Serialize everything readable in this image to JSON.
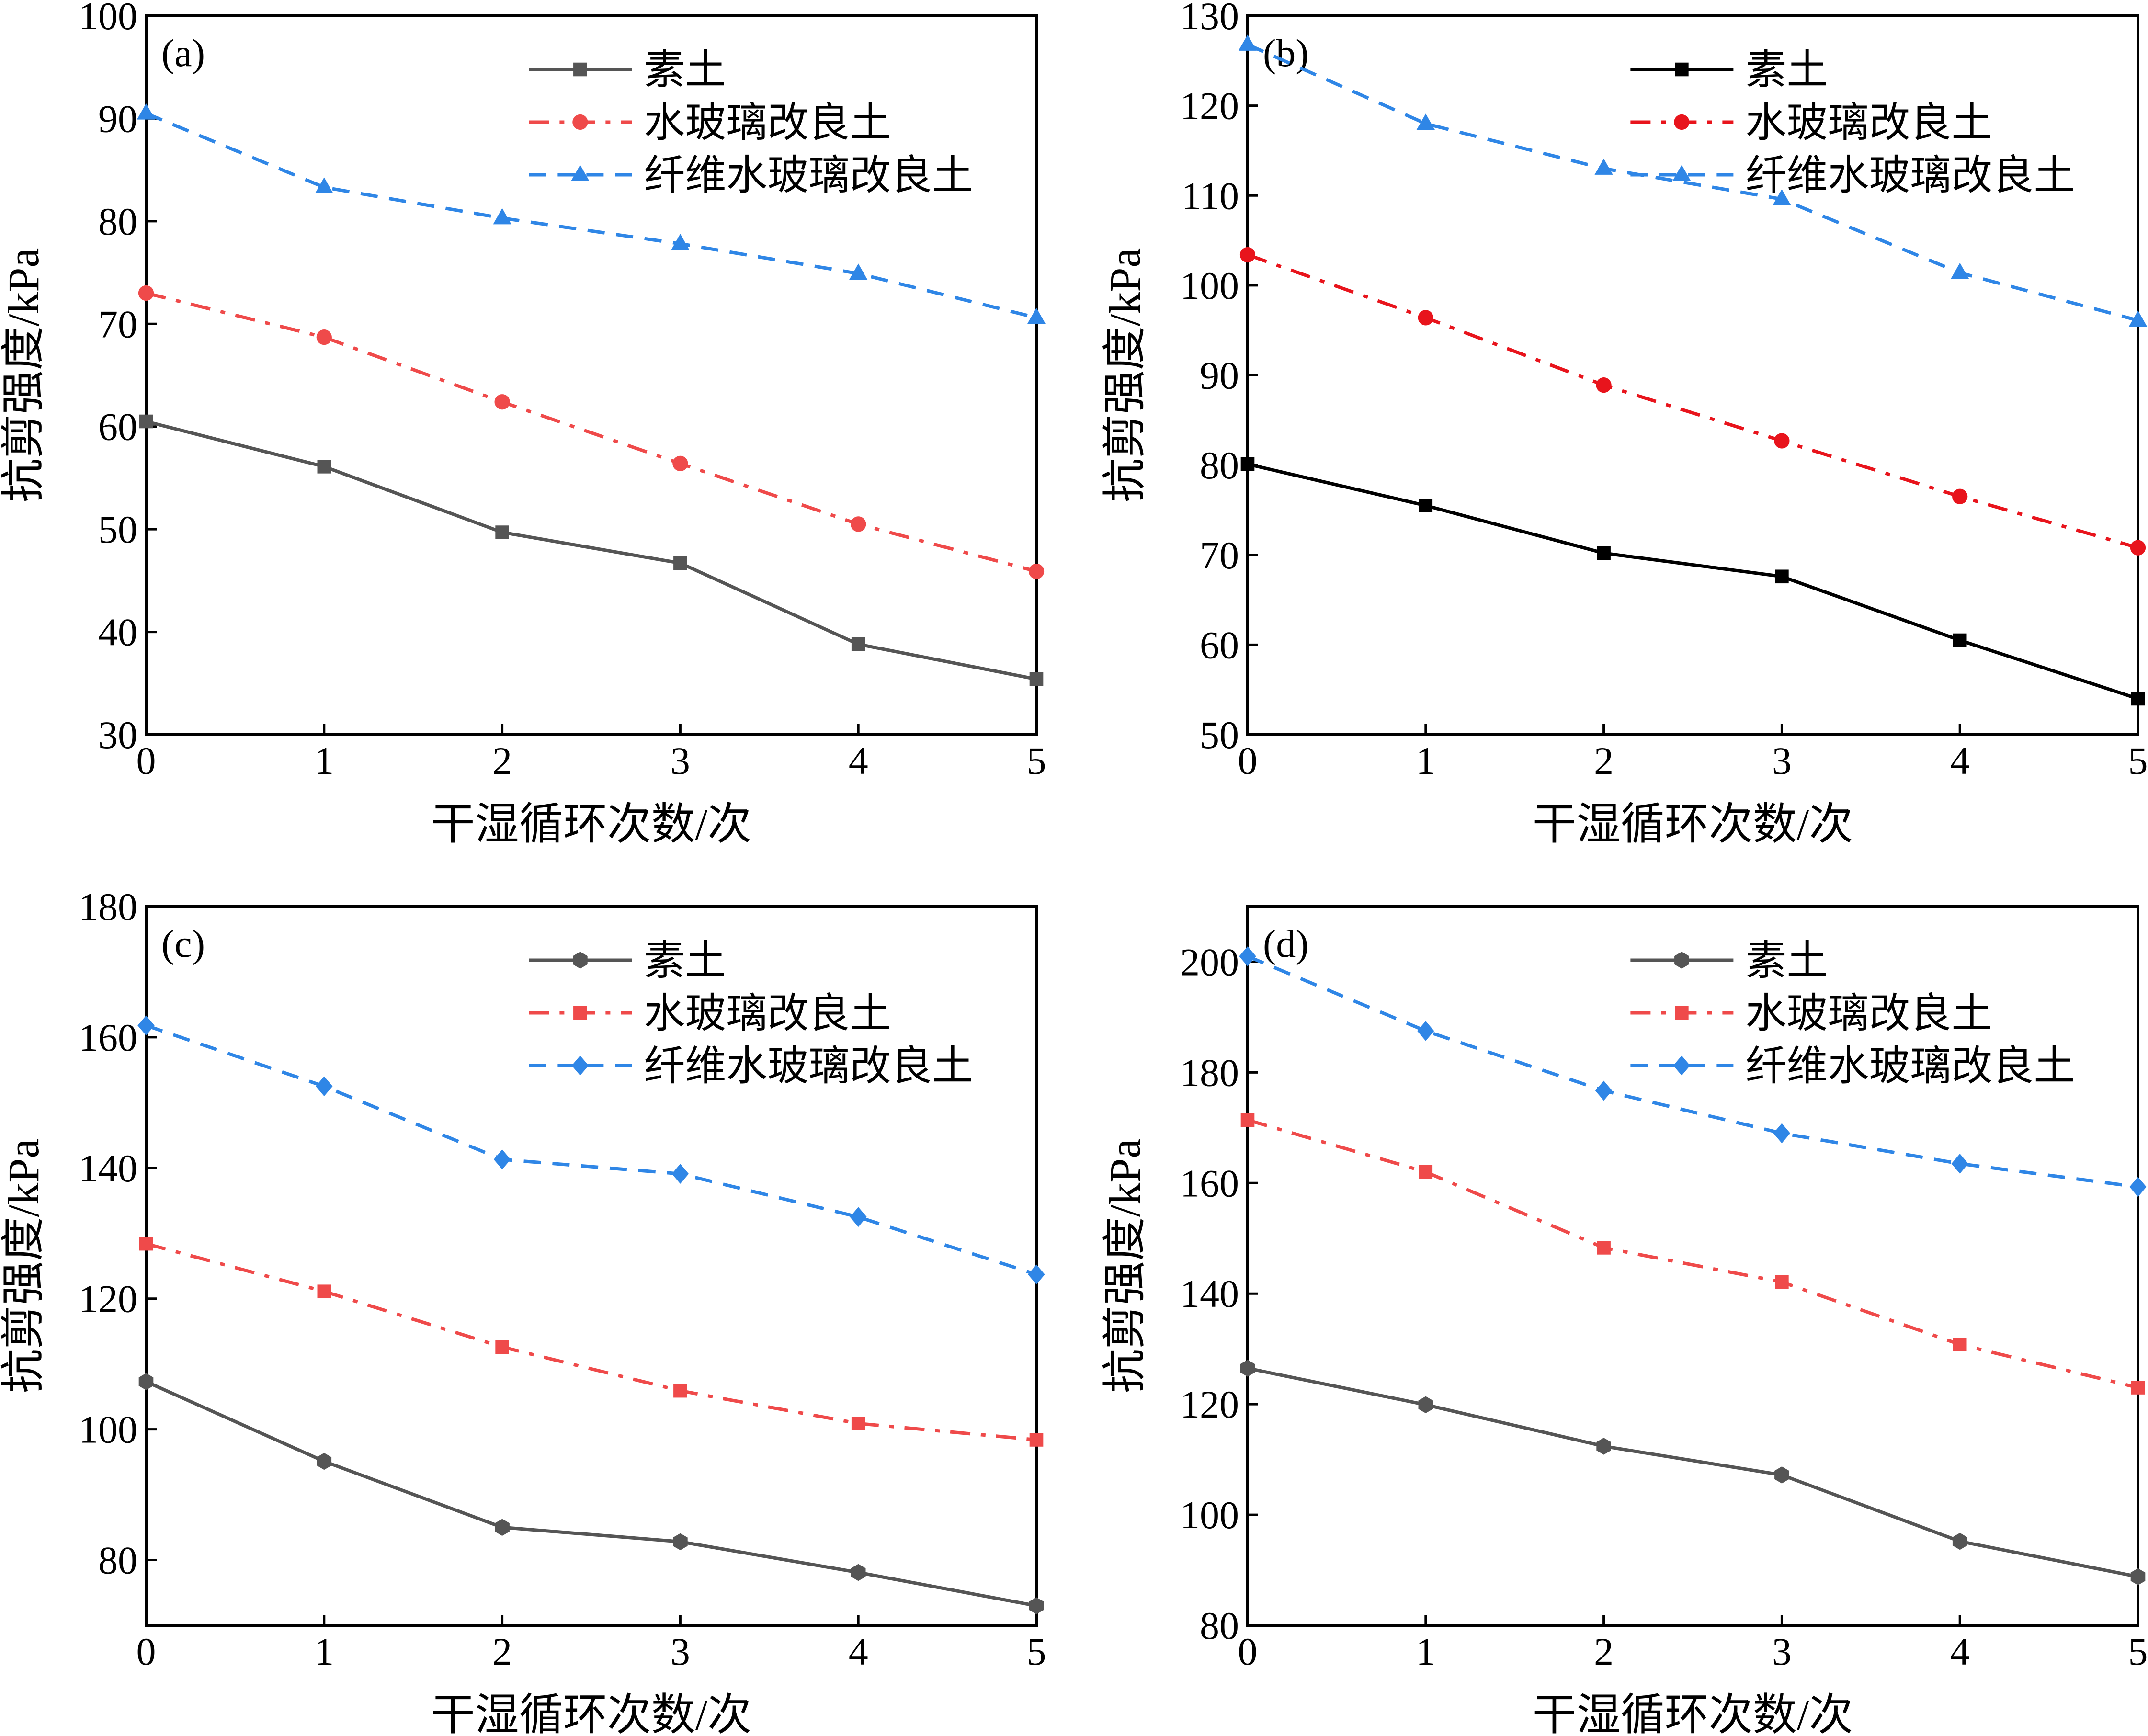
{
  "chart_data": [
    {
      "panel": "(a)",
      "type": "line",
      "xlabel": "干湿循环次数/次",
      "ylabel": "抗剪强度/kPa",
      "x": [
        0,
        1,
        2,
        3,
        4,
        5
      ],
      "xlim": [
        0,
        5
      ],
      "ylim": [
        30,
        100
      ],
      "yticks": [
        30,
        40,
        50,
        60,
        70,
        80,
        90,
        100
      ],
      "legend_position": "top-right",
      "series": [
        {
          "name": "素土",
          "values": [
            60.5,
            56.1,
            49.7,
            46.7,
            38.8,
            35.4
          ],
          "color": "#555555",
          "marker": "square",
          "dash": "solid"
        },
        {
          "name": "水玻璃改良土",
          "values": [
            73.0,
            68.7,
            62.4,
            56.4,
            50.5,
            45.9
          ],
          "color": "#ef4a4a",
          "marker": "circle",
          "dash": "dashdot"
        },
        {
          "name": "纤维水玻璃改良土",
          "values": [
            90.5,
            83.3,
            80.3,
            77.8,
            74.9,
            70.6
          ],
          "color": "#2f86e6",
          "marker": "triangle",
          "dash": "dashed"
        }
      ]
    },
    {
      "panel": "(b)",
      "type": "line",
      "xlabel": "干湿循环次数/次",
      "ylabel": "抗剪强度/kPa",
      "x": [
        0,
        1,
        2,
        3,
        4,
        5
      ],
      "xlim": [
        0,
        5
      ],
      "ylim": [
        50,
        130
      ],
      "yticks": [
        50,
        60,
        70,
        80,
        90,
        100,
        110,
        120,
        130
      ],
      "legend_position": "top-right",
      "series": [
        {
          "name": "素土",
          "values": [
            80.1,
            75.5,
            70.2,
            67.6,
            60.5,
            54.0
          ],
          "color": "#000000",
          "marker": "square",
          "dash": "solid"
        },
        {
          "name": "水玻璃改良土",
          "values": [
            103.4,
            96.4,
            88.9,
            82.7,
            76.5,
            70.8
          ],
          "color": "#e8141c",
          "marker": "circle",
          "dash": "dashdot"
        },
        {
          "name": "纤维水玻璃改良土",
          "values": [
            126.8,
            118.0,
            113.0,
            109.6,
            101.4,
            96.1
          ],
          "color": "#2f86e6",
          "marker": "triangle",
          "dash": "dashed"
        }
      ]
    },
    {
      "panel": "(c)",
      "type": "line",
      "xlabel": "干湿循环次数/次",
      "ylabel": "抗剪强度/kPa",
      "x": [
        0,
        1,
        2,
        3,
        4,
        5
      ],
      "xlim": [
        0,
        5
      ],
      "ylim": [
        70,
        180
      ],
      "yticks": [
        80,
        100,
        120,
        140,
        160,
        180
      ],
      "legend_position": "top-right",
      "series": [
        {
          "name": "素土",
          "values": [
            107.3,
            95.1,
            85.0,
            82.8,
            78.1,
            73.0
          ],
          "color": "#555555",
          "marker": "hexagon",
          "dash": "solid"
        },
        {
          "name": "水玻璃改良土",
          "values": [
            128.4,
            121.1,
            112.6,
            105.9,
            100.9,
            98.4
          ],
          "color": "#ef4a4a",
          "marker": "square",
          "dash": "dashdot"
        },
        {
          "name": "纤维水玻璃改良土",
          "values": [
            161.8,
            152.5,
            141.3,
            139.1,
            132.5,
            123.7
          ],
          "color": "#2f86e6",
          "marker": "diamond",
          "dash": "dashed"
        }
      ]
    },
    {
      "panel": "(d)",
      "type": "line",
      "xlabel": "干湿循环次数/次",
      "ylabel": "抗剪强度/kPa",
      "x": [
        0,
        1,
        2,
        3,
        4,
        5
      ],
      "xlim": [
        0,
        5
      ],
      "ylim": [
        80,
        210
      ],
      "yticks": [
        80,
        100,
        120,
        140,
        160,
        180,
        200
      ],
      "legend_position": "top-right",
      "series": [
        {
          "name": "素土",
          "values": [
            126.5,
            119.9,
            112.4,
            107.2,
            95.2,
            88.8
          ],
          "color": "#555555",
          "marker": "hexagon",
          "dash": "solid"
        },
        {
          "name": "水玻璃改良土",
          "values": [
            171.4,
            162.0,
            148.3,
            142.1,
            130.8,
            123.0
          ],
          "color": "#ef4a4a",
          "marker": "square",
          "dash": "dashdot"
        },
        {
          "name": "纤维水玻璃改良土",
          "values": [
            201.0,
            187.5,
            176.7,
            169.0,
            163.5,
            159.3
          ],
          "color": "#2f86e6",
          "marker": "diamond",
          "dash": "dashed"
        }
      ]
    }
  ]
}
